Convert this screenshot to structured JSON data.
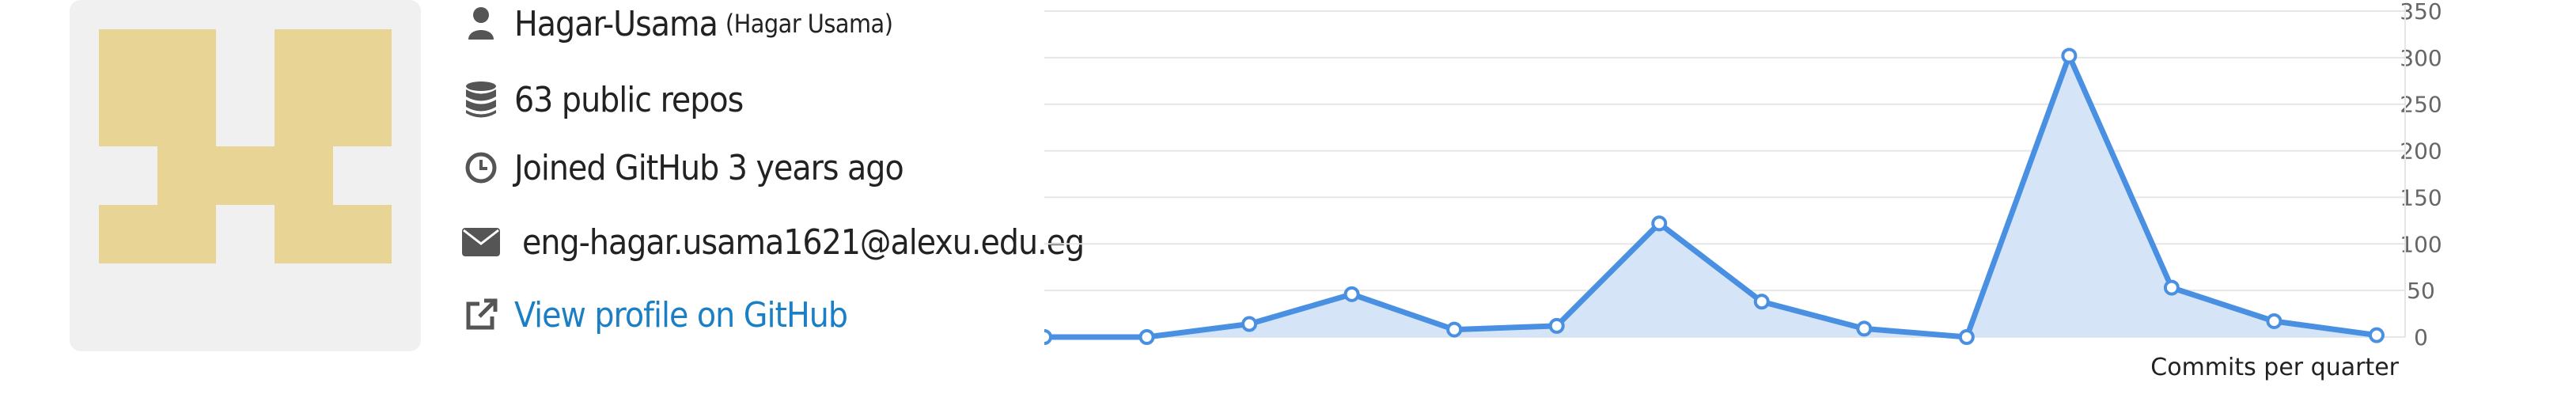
{
  "profile": {
    "username": "Hagar-Usama",
    "fullname": "(Hagar Usama)",
    "repos": "63 public repos",
    "joined": "Joined GitHub 3 years ago",
    "email": "eng-hagar.usama1621@alexu.edu.eg",
    "link": "View profile on GitHub"
  },
  "icons": {
    "user": "user-icon",
    "repos": "database-icon",
    "joined": "clock-icon",
    "email": "envelope-icon",
    "link": "external-link-icon"
  },
  "colors": {
    "avatar": "#e8d494",
    "line": "#4a90e2",
    "area": "#d5e5f7",
    "link": "#1a7fc4"
  },
  "chart_data": {
    "type": "area",
    "xlabel": "Commits per quarter",
    "ylim": [
      0,
      350
    ],
    "yticks": [
      "0",
      "50",
      "100",
      "150",
      "200",
      "250",
      "300",
      "350"
    ],
    "values": [
      0,
      0,
      14,
      46,
      8,
      12,
      122,
      38,
      9,
      0,
      302,
      53,
      17,
      2
    ]
  }
}
